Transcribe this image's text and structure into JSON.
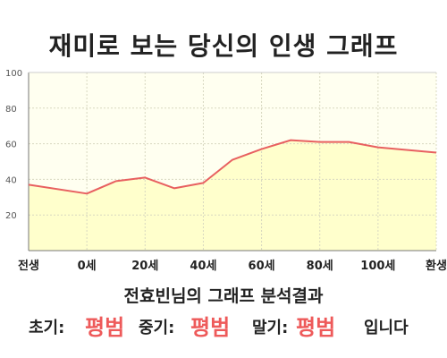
{
  "title": "재미로 보는 당신의 인생 그래프",
  "chart_data": {
    "type": "area",
    "categories": [
      "전생",
      "0세",
      "20세",
      "40세",
      "60세",
      "80세",
      "100세",
      "환생"
    ],
    "x": [
      -20,
      0,
      10,
      20,
      30,
      40,
      50,
      60,
      70,
      80,
      90,
      100,
      120
    ],
    "values": [
      37,
      32,
      39,
      41,
      35,
      38,
      51,
      57,
      62,
      61,
      61,
      58,
      55
    ],
    "ylim": [
      0,
      100
    ],
    "yticks": [
      20,
      40,
      60,
      80,
      100
    ],
    "grid": true,
    "colors": {
      "line": "#e86060",
      "fill": "#ffffcc",
      "grid": "#d8d8c0",
      "axis": "#777777"
    }
  },
  "subtitle": "전효빈님의 그래프 분석결과",
  "result": {
    "early_label": "초기:",
    "early_value": "평범",
    "mid_label": "중기:",
    "mid_value": "평범",
    "late_label": "말기:",
    "late_value": "평범",
    "suffix": "입니다"
  }
}
